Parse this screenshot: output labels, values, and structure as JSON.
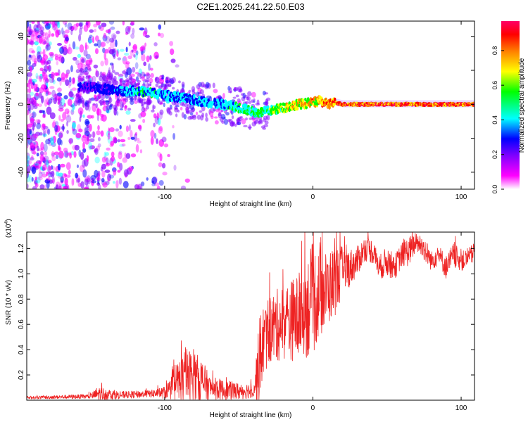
{
  "title": "C2E1.2025.241.22.50.E03",
  "chart_data": [
    {
      "type": "heatmap",
      "name": "spectrogram",
      "xlabel": "Height of straight line (km)",
      "ylabel": "Frequency (Hz)",
      "xlim": [
        -193,
        109
      ],
      "ylim": [
        -50,
        49
      ],
      "xticks": [
        -100,
        0,
        100
      ],
      "xtick_labels": [
        "-100",
        "0",
        "100"
      ],
      "yticks": [
        -40,
        -20,
        0,
        20,
        40
      ],
      "ytick_labels": [
        "-40",
        "-20",
        "0",
        "20",
        "40"
      ],
      "colorbar": {
        "label": "Normalized spectral amplitude",
        "range": [
          0.0,
          0.97
        ],
        "ticks": [
          0.0,
          0.2,
          0.4,
          0.6,
          0.8
        ],
        "tick_labels": [
          "0.0",
          "0.2",
          "0.4",
          "0.6",
          "0.8"
        ],
        "colors": [
          "#ffffff",
          "#ff00ff",
          "#8000ff",
          "#0000ff",
          "#00ffff",
          "#00ff00",
          "#ffff00",
          "#ff8000",
          "#ff0000",
          "#ff0066"
        ]
      },
      "ridge": {
        "description_points_x": [
          -150,
          -130,
          -120,
          -110,
          -90,
          -70,
          -55,
          -45,
          -38,
          -30,
          -20,
          -10,
          0,
          5,
          10,
          15,
          20,
          50,
          100,
          109
        ],
        "frequency_y": [
          10,
          8,
          8,
          7,
          4,
          1,
          -1,
          -3,
          -5,
          -4,
          -2,
          0,
          1,
          2,
          0,
          1,
          0,
          0,
          0,
          0
        ],
        "amplitude": [
          0.3,
          0.4,
          0.5,
          0.5,
          0.45,
          0.45,
          0.5,
          0.55,
          0.6,
          0.6,
          0.7,
          0.75,
          0.8,
          0.85,
          0.85,
          0.9,
          0.95,
          0.95,
          0.95,
          0.95
        ]
      }
    },
    {
      "type": "line",
      "name": "snr",
      "xlabel": "Height of straight line (km)",
      "ylabel": "SNR (10 * v/v)",
      "y_multiplier_label": "(x10",
      "y_multiplier_exp": "4",
      "y_multiplier_close": ")",
      "xlim": [
        -193,
        109
      ],
      "ylim": [
        0,
        1.33
      ],
      "xticks": [
        -100,
        0,
        100
      ],
      "xtick_labels": [
        "-100",
        "0",
        "100"
      ],
      "yticks": [
        0.2,
        0.4,
        0.6,
        0.8,
        1.0,
        1.2
      ],
      "ytick_labels": [
        "0.2",
        "0.4",
        "0.6",
        "0.8",
        "1.0",
        "1.2"
      ],
      "color": "#ee2222",
      "series": [
        {
          "name": "SNR envelope",
          "x": [
            -193,
            -150,
            -145,
            -130,
            -110,
            -100,
            -95,
            -90,
            -85,
            -80,
            -75,
            -70,
            -60,
            -50,
            -40,
            -36,
            -34,
            -30,
            -20,
            -10,
            0,
            5,
            10,
            15,
            20,
            25,
            30,
            35,
            40,
            45,
            50,
            55,
            60,
            65,
            70,
            75,
            80,
            85,
            90,
            95,
            100,
            105,
            109
          ],
          "base": [
            0.02,
            0.03,
            0.05,
            0.04,
            0.05,
            0.06,
            0.1,
            0.15,
            0.2,
            0.18,
            0.16,
            0.1,
            0.08,
            0.07,
            0.08,
            0.3,
            0.45,
            0.55,
            0.62,
            0.65,
            0.8,
            0.85,
            0.88,
            0.95,
            1.02,
            1.05,
            1.1,
            1.2,
            1.18,
            1.05,
            1.1,
            1.05,
            1.15,
            1.18,
            1.25,
            1.2,
            1.1,
            1.15,
            1.05,
            1.15,
            1.1,
            1.12,
            1.18
          ],
          "amp": [
            0.01,
            0.02,
            0.06,
            0.03,
            0.03,
            0.05,
            0.1,
            0.2,
            0.22,
            0.2,
            0.18,
            0.1,
            0.08,
            0.07,
            0.06,
            0.35,
            0.3,
            0.28,
            0.3,
            0.35,
            0.45,
            0.35,
            0.3,
            0.28,
            0.2,
            0.15,
            0.12,
            0.1,
            0.1,
            0.1,
            0.12,
            0.1,
            0.1,
            0.12,
            0.08,
            0.1,
            0.08,
            0.08,
            0.1,
            0.1,
            0.08,
            0.08,
            0.08
          ]
        }
      ]
    }
  ]
}
